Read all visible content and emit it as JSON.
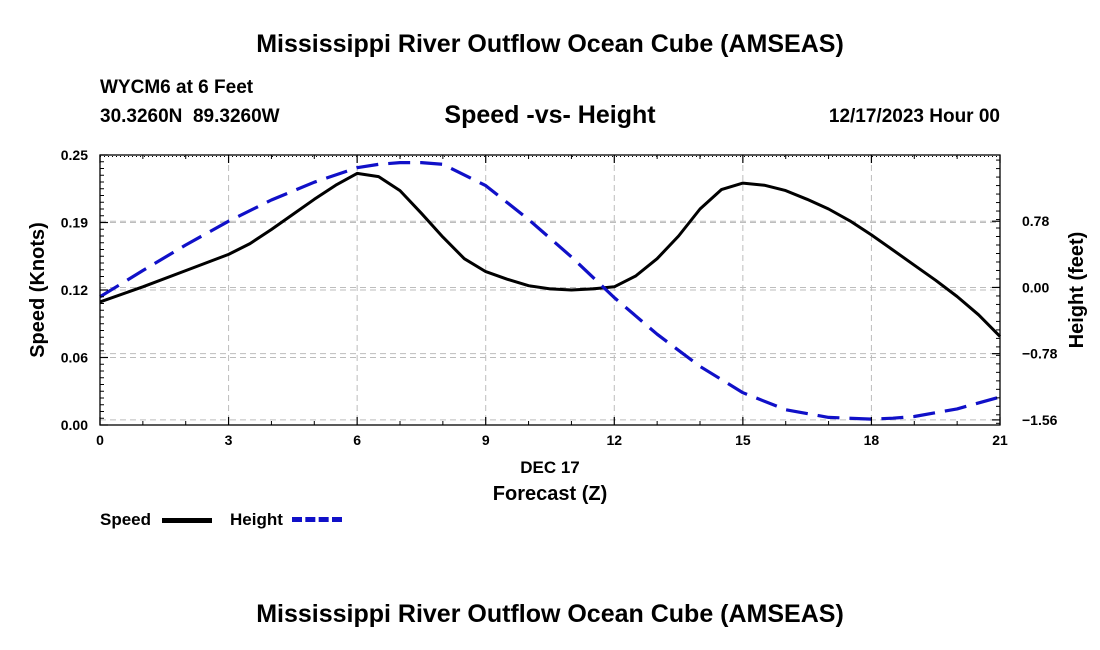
{
  "header": {
    "title": "Mississippi River Outflow Ocean Cube (AMSEAS)",
    "station": "WYCM6 at 6 Feet",
    "coords": "30.3260N  89.3260W",
    "date": "12/17/2023 Hour 00"
  },
  "footer": {
    "title": "Mississippi River Outflow Ocean Cube (AMSEAS)"
  },
  "legend": {
    "speed_label": "Speed",
    "height_label": "Height"
  },
  "chart_data": {
    "type": "line",
    "title": "Speed -vs- Height",
    "xlabel": "Forecast (Z)",
    "xlabel_date": "DEC 17",
    "ylabel": "Speed (Knots)",
    "y2label": "Height (feet)",
    "xlim": [
      0,
      21
    ],
    "ylim": [
      0,
      0.25
    ],
    "y2lim": [
      -1.62,
      1.56
    ],
    "x_ticks": [
      0,
      3,
      6,
      9,
      12,
      15,
      18,
      21
    ],
    "x_tick_labels": [
      "0",
      "3",
      "6",
      "9",
      "12",
      "15",
      "18",
      "21"
    ],
    "y_ticks": [
      0.0,
      0.0625,
      0.125,
      0.1875,
      0.25
    ],
    "y_tick_labels": [
      "0.00",
      "0.06",
      "0.12",
      "0.19",
      "0.25"
    ],
    "y2_ticks": [
      0.78,
      0.0,
      -0.78,
      -1.56
    ],
    "y2_tick_labels": [
      "0.78",
      "0.00",
      "−0.78",
      "−1.56"
    ],
    "grid": true,
    "legend_position": "bottom-left",
    "series": [
      {
        "name": "Speed",
        "axis": "left",
        "color": "#000000",
        "style": "solid",
        "x": [
          0,
          1,
          2,
          3,
          3.5,
          4,
          4.5,
          5,
          5.5,
          6,
          6.5,
          7,
          7.5,
          8,
          8.5,
          9,
          9.5,
          10,
          10.5,
          11,
          11.5,
          12,
          12.5,
          13,
          13.5,
          14,
          14.5,
          15,
          15.5,
          16,
          16.5,
          17,
          17.5,
          18,
          18.5,
          19,
          19.5,
          20,
          20.5,
          21
        ],
        "values": [
          0.114,
          0.128,
          0.143,
          0.158,
          0.168,
          0.181,
          0.195,
          0.209,
          0.222,
          0.233,
          0.23,
          0.217,
          0.196,
          0.174,
          0.154,
          0.142,
          0.135,
          0.129,
          0.126,
          0.125,
          0.126,
          0.128,
          0.138,
          0.154,
          0.175,
          0.2,
          0.218,
          0.224,
          0.222,
          0.217,
          0.209,
          0.2,
          0.189,
          0.176,
          0.162,
          0.148,
          0.134,
          0.119,
          0.102,
          0.082
        ]
      },
      {
        "name": "Height",
        "axis": "right",
        "color": "#1010c8",
        "style": "dashed",
        "x": [
          0,
          1,
          2,
          3,
          4,
          5,
          6,
          6.5,
          7,
          7.5,
          8,
          9,
          10,
          11,
          12,
          13,
          14,
          15,
          16,
          17,
          18,
          18.5,
          19,
          20,
          21
        ],
        "values": [
          -0.11,
          0.2,
          0.5,
          0.78,
          1.03,
          1.24,
          1.41,
          1.45,
          1.47,
          1.47,
          1.45,
          1.2,
          0.8,
          0.36,
          -0.12,
          -0.55,
          -0.93,
          -1.24,
          -1.44,
          -1.53,
          -1.55,
          -1.54,
          -1.52,
          -1.43,
          -1.29
        ]
      }
    ]
  }
}
